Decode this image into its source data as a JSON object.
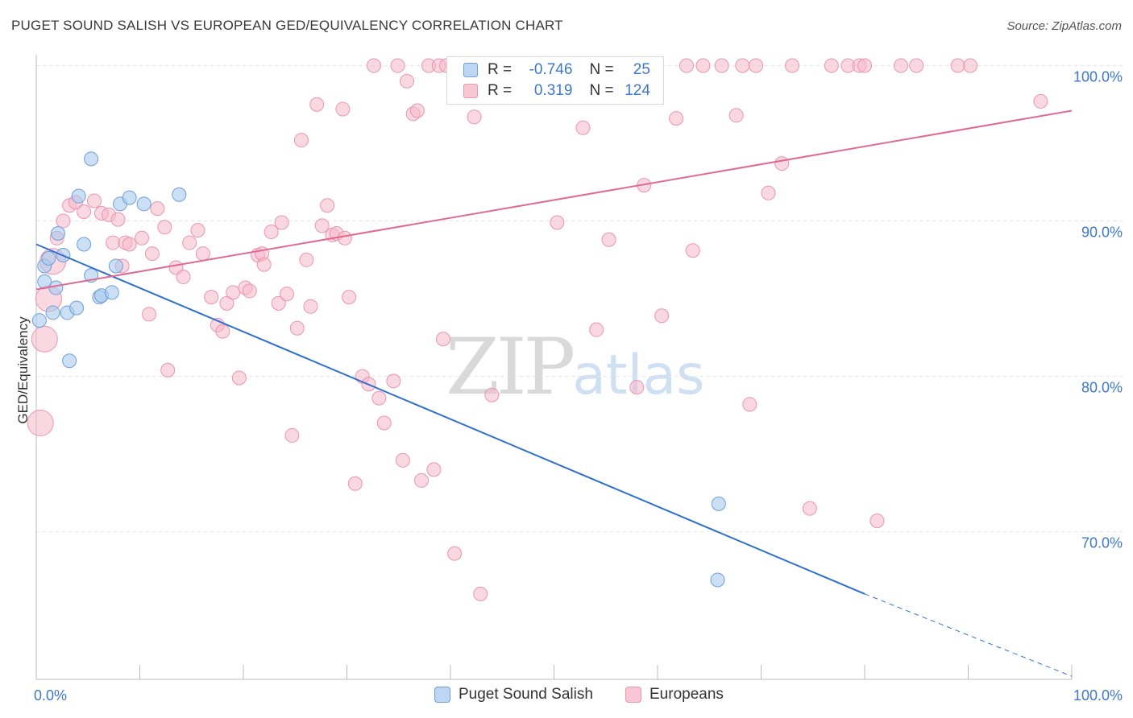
{
  "header": {
    "title": "PUGET SOUND SALISH VS EUROPEAN GED/EQUIVALENCY CORRELATION CHART",
    "source": "Source: ZipAtlas.com"
  },
  "watermark": {
    "zip": "ZIP",
    "atlas": "atlas"
  },
  "legend_top": {
    "rows": [
      {
        "r_label": "R =",
        "r_value": "-0.746",
        "n_label": "N =",
        "n_value": "25"
      },
      {
        "r_label": "R =",
        "r_value": "0.319",
        "n_label": "N =",
        "n_value": "124"
      }
    ]
  },
  "legend_bottom": {
    "items": [
      {
        "label": "Puget Sound Salish"
      },
      {
        "label": "Europeans"
      }
    ]
  },
  "colors": {
    "blue_fill": "#a9c9ee",
    "blue_stroke": "#6f9fd8",
    "blue_line": "#2f6fcf",
    "pink_fill": "#f6b8cb",
    "pink_stroke": "#e995b0",
    "pink_line": "#e06a93",
    "tick_color": "#3d78c9"
  },
  "chart_data": {
    "type": "scatter",
    "title": "PUGET SOUND SALISH VS EUROPEAN GED/EQUIVALENCY CORRELATION CHART",
    "xlabel": "",
    "ylabel": "GED/Equivalency",
    "xlim": [
      0,
      100
    ],
    "ylim": [
      60.5,
      100.7
    ],
    "x_tick_labels": [
      "0.0%",
      "100.0%"
    ],
    "y_ticks": [
      70,
      80,
      90,
      100
    ],
    "y_tick_labels": [
      "70.0%",
      "80.0%",
      "90.0%",
      "100.0%"
    ],
    "grid": true,
    "series": [
      {
        "name": "Puget Sound Salish",
        "color": "#a9c9ee",
        "points": [
          [
            0.3,
            83.6
          ],
          [
            0.8,
            86.1
          ],
          [
            0.8,
            87.1
          ],
          [
            1.2,
            87.6
          ],
          [
            1.6,
            84.1
          ],
          [
            1.9,
            85.7
          ],
          [
            2.1,
            89.2
          ],
          [
            2.6,
            87.8
          ],
          [
            3.0,
            84.1
          ],
          [
            3.2,
            81.0
          ],
          [
            3.9,
            84.4
          ],
          [
            4.1,
            91.6
          ],
          [
            4.6,
            88.5
          ],
          [
            5.3,
            86.5
          ],
          [
            5.3,
            94.0
          ],
          [
            6.1,
            85.1
          ],
          [
            6.3,
            85.2
          ],
          [
            7.3,
            85.4
          ],
          [
            7.7,
            87.1
          ],
          [
            8.1,
            91.1
          ],
          [
            9.0,
            91.5
          ],
          [
            10.4,
            91.1
          ],
          [
            13.8,
            91.7
          ],
          [
            65.8,
            66.9
          ],
          [
            65.9,
            71.8
          ]
        ],
        "trend": {
          "x": [
            0,
            80
          ],
          "y": [
            88.5,
            66.0
          ],
          "dashed_to": [
            100,
            60.7
          ]
        }
      },
      {
        "name": "Europeans",
        "color": "#f6b8cb",
        "points": [
          [
            0.4,
            77.0
          ],
          [
            0.8,
            82.4
          ],
          [
            1.2,
            85.0
          ],
          [
            1.6,
            87.4
          ],
          [
            2.0,
            88.9
          ],
          [
            2.6,
            90.0
          ],
          [
            3.2,
            91.0
          ],
          [
            3.8,
            91.2
          ],
          [
            4.6,
            90.6
          ],
          [
            5.6,
            91.3
          ],
          [
            6.3,
            90.5
          ],
          [
            7.0,
            90.4
          ],
          [
            7.4,
            88.6
          ],
          [
            7.9,
            90.1
          ],
          [
            8.3,
            87.1
          ],
          [
            8.6,
            88.6
          ],
          [
            9.0,
            88.5
          ],
          [
            10.2,
            88.9
          ],
          [
            10.9,
            84.0
          ],
          [
            11.2,
            87.9
          ],
          [
            11.7,
            90.8
          ],
          [
            12.4,
            89.6
          ],
          [
            12.7,
            80.4
          ],
          [
            13.5,
            87.0
          ],
          [
            14.2,
            86.4
          ],
          [
            14.8,
            88.6
          ],
          [
            15.6,
            89.4
          ],
          [
            16.1,
            87.9
          ],
          [
            16.9,
            85.1
          ],
          [
            17.5,
            83.3
          ],
          [
            18.0,
            82.9
          ],
          [
            18.4,
            84.7
          ],
          [
            19.0,
            85.4
          ],
          [
            19.6,
            79.9
          ],
          [
            20.2,
            85.7
          ],
          [
            20.6,
            85.5
          ],
          [
            21.4,
            87.8
          ],
          [
            21.8,
            87.9
          ],
          [
            22.0,
            87.2
          ],
          [
            22.7,
            89.3
          ],
          [
            23.4,
            84.7
          ],
          [
            23.7,
            89.9
          ],
          [
            24.2,
            85.3
          ],
          [
            24.7,
            76.2
          ],
          [
            25.2,
            83.1
          ],
          [
            25.6,
            95.2
          ],
          [
            26.1,
            87.5
          ],
          [
            26.5,
            84.5
          ],
          [
            27.1,
            97.5
          ],
          [
            27.6,
            89.7
          ],
          [
            28.1,
            91.0
          ],
          [
            28.6,
            89.1
          ],
          [
            29.0,
            89.2
          ],
          [
            29.6,
            97.2
          ],
          [
            29.8,
            88.9
          ],
          [
            30.2,
            85.1
          ],
          [
            30.8,
            73.1
          ],
          [
            31.5,
            80.0
          ],
          [
            32.1,
            79.5
          ],
          [
            32.6,
            100.0
          ],
          [
            33.1,
            78.6
          ],
          [
            33.6,
            77.0
          ],
          [
            34.5,
            79.7
          ],
          [
            34.9,
            100.0
          ],
          [
            35.4,
            74.6
          ],
          [
            35.8,
            99.0
          ],
          [
            36.4,
            96.9
          ],
          [
            36.8,
            97.1
          ],
          [
            37.2,
            73.3
          ],
          [
            37.9,
            100.0
          ],
          [
            38.4,
            74.0
          ],
          [
            38.9,
            100.0
          ],
          [
            39.3,
            82.4
          ],
          [
            39.6,
            100.0
          ],
          [
            40.4,
            68.6
          ],
          [
            41.3,
            100.0
          ],
          [
            42.3,
            96.7
          ],
          [
            42.9,
            66.0
          ],
          [
            43.2,
            100.0
          ],
          [
            44.0,
            78.8
          ],
          [
            45.0,
            100.0
          ],
          [
            46.2,
            100.0
          ],
          [
            47.1,
            98.2
          ],
          [
            48.5,
            100.0
          ],
          [
            49.5,
            100.0
          ],
          [
            50.3,
            89.9
          ],
          [
            50.9,
            100.0
          ],
          [
            52.1,
            100.0
          ],
          [
            52.8,
            96.0
          ],
          [
            53.6,
            100.0
          ],
          [
            54.1,
            83.0
          ],
          [
            54.6,
            100.0
          ],
          [
            55.3,
            88.8
          ],
          [
            56.3,
            100.0
          ],
          [
            57.6,
            100.0
          ],
          [
            58.0,
            79.3
          ],
          [
            58.7,
            92.3
          ],
          [
            59.9,
            100.0
          ],
          [
            60.4,
            83.9
          ],
          [
            61.8,
            96.6
          ],
          [
            62.8,
            100.0
          ],
          [
            63.4,
            88.1
          ],
          [
            64.4,
            100.0
          ],
          [
            66.2,
            100.0
          ],
          [
            67.6,
            96.8
          ],
          [
            68.2,
            100.0
          ],
          [
            68.9,
            78.2
          ],
          [
            69.5,
            100.0
          ],
          [
            70.7,
            91.8
          ],
          [
            72.0,
            93.7
          ],
          [
            73.0,
            100.0
          ],
          [
            74.7,
            71.5
          ],
          [
            76.8,
            100.0
          ],
          [
            78.4,
            100.0
          ],
          [
            79.5,
            100.0
          ],
          [
            80.0,
            100.0
          ],
          [
            81.2,
            70.7
          ],
          [
            83.5,
            100.0
          ],
          [
            85.0,
            100.0
          ],
          [
            89.0,
            100.0
          ],
          [
            90.2,
            100.0
          ],
          [
            97.0,
            97.7
          ]
        ],
        "trend": {
          "x": [
            0,
            100
          ],
          "y": [
            85.6,
            97.1
          ]
        }
      }
    ]
  }
}
